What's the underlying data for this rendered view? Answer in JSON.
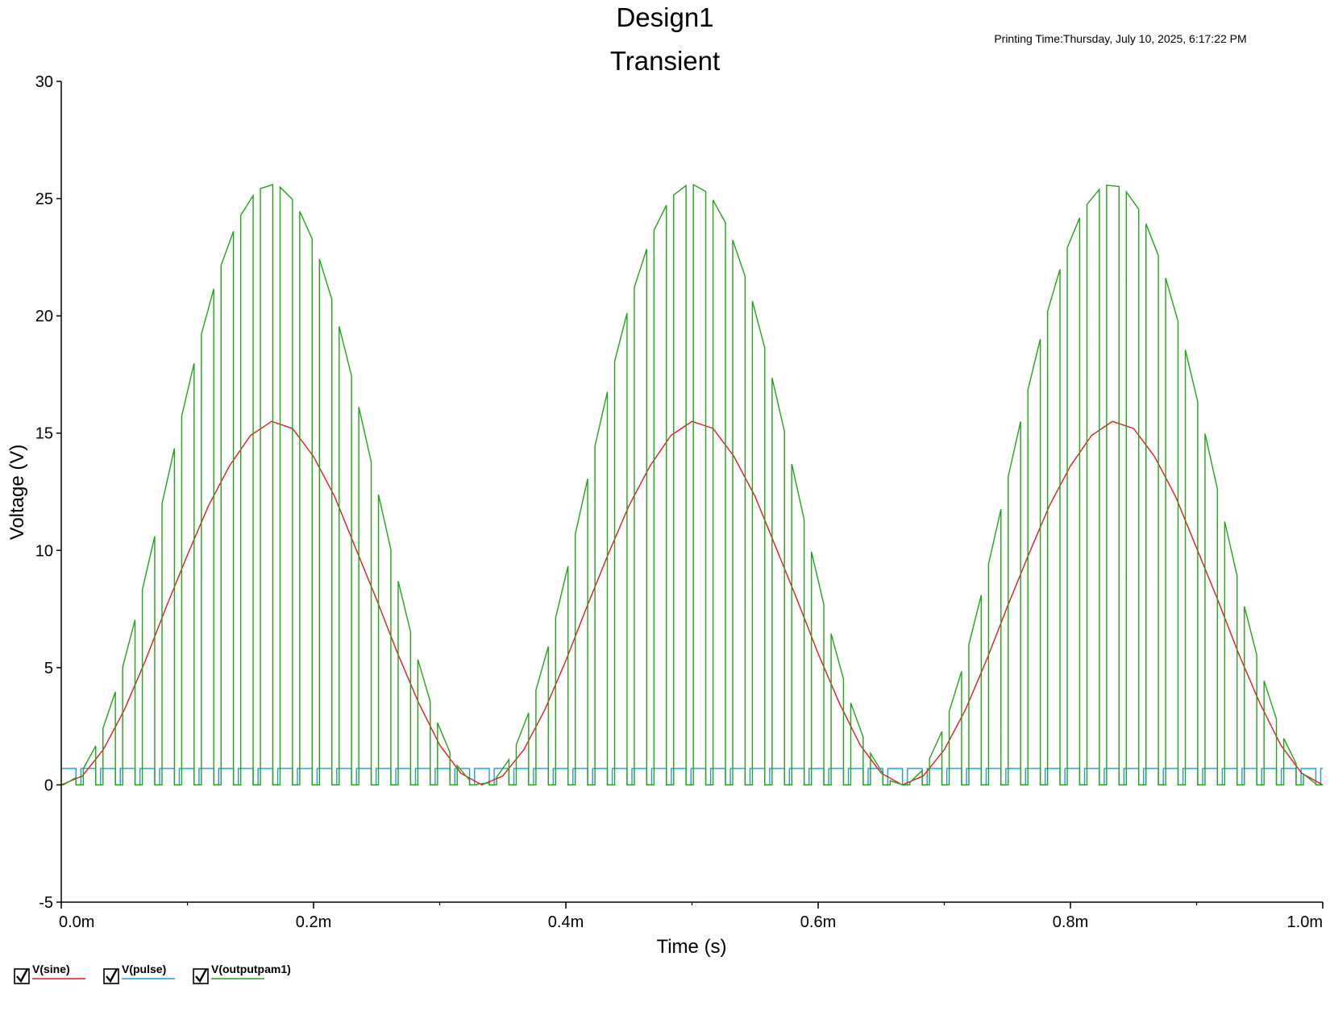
{
  "chart_data": {
    "type": "line",
    "title": "Design1",
    "subtitle": "Transient",
    "printing_time": "Printing Time:Thursday, July 10, 2025, 6:17:22 PM",
    "xlabel": "Time (s)",
    "ylabel": "Voltage (V)",
    "xlim": [
      0,
      0.001
    ],
    "ylim": [
      -5,
      30
    ],
    "x_ticks": [
      {
        "value": 0,
        "label": "0.0m"
      },
      {
        "value": 0.0002,
        "label": "0.2m"
      },
      {
        "value": 0.0004,
        "label": "0.4m"
      },
      {
        "value": 0.0006,
        "label": "0.6m"
      },
      {
        "value": 0.0008,
        "label": "0.8m"
      },
      {
        "value": 0.001,
        "label": "1.0m"
      }
    ],
    "x_minor_step": 0.0001,
    "y_ticks": [
      {
        "value": -5,
        "label": "-5"
      },
      {
        "value": 0,
        "label": "0"
      },
      {
        "value": 5,
        "label": "5"
      },
      {
        "value": 10,
        "label": "10"
      },
      {
        "value": 15,
        "label": "15"
      },
      {
        "value": 20,
        "label": "20"
      },
      {
        "value": 25,
        "label": "25"
      },
      {
        "value": 30,
        "label": "30"
      }
    ],
    "grid": false,
    "legend_position": "bottom-left",
    "series": [
      {
        "name": "V(sine)",
        "color": "#e31a1c",
        "visible": true,
        "x": [
          0,
          1.67e-05,
          3.33e-05,
          5e-05,
          6.67e-05,
          8.33e-05,
          0.0001,
          0.0001167,
          0.0001333,
          0.00015,
          0.0001667,
          0.0001833,
          0.0002,
          0.0002167,
          0.0002333,
          0.00025,
          0.0002667,
          0.0002833,
          0.0003,
          0.0003167,
          0.0003333,
          0.00035,
          0.0003667,
          0.0003833,
          0.0004,
          0.0004167,
          0.0004333,
          0.00045,
          0.0004667,
          0.0004833,
          0.0005,
          0.0005167,
          0.0005333,
          0.00055,
          0.0005667,
          0.0005833,
          0.0006,
          0.0006167,
          0.0006333,
          0.00065,
          0.0006667,
          0.0006833,
          0.0007,
          0.0007167,
          0.0007333,
          0.00075,
          0.0007667,
          0.0007833,
          0.0008,
          0.0008167,
          0.0008333,
          0.00085,
          0.0008667,
          0.0008833,
          0.0009,
          0.0009167,
          0.0009333,
          0.00095,
          0.0009667,
          0.0009833,
          0.001
        ],
        "values": [
          0,
          0.38,
          1.5,
          3.2,
          5.3,
          7.6,
          9.8,
          11.9,
          13.6,
          14.9,
          15.5,
          15.2,
          14.0,
          12.3,
          10.1,
          7.9,
          5.6,
          3.5,
          1.7,
          0.5,
          0,
          0.38,
          1.5,
          3.2,
          5.3,
          7.6,
          9.8,
          11.9,
          13.6,
          14.9,
          15.5,
          15.2,
          14.0,
          12.3,
          10.1,
          7.9,
          5.6,
          3.5,
          1.7,
          0.5,
          0,
          0.38,
          1.5,
          3.2,
          5.3,
          7.6,
          9.8,
          11.9,
          13.6,
          14.9,
          15.5,
          15.2,
          14.0,
          12.3,
          10.1,
          7.9,
          5.6,
          3.5,
          1.7,
          0.5,
          0
        ]
      },
      {
        "name": "V(pulse)",
        "color": "#1f9bd7",
        "visible": true,
        "period": 1.56e-05,
        "duty": 0.75,
        "high": 0.7,
        "low": 0
      },
      {
        "name": "V(outputpam1)",
        "color": "#22a31a",
        "visible": true,
        "period": 1.56e-05,
        "duty": 0.75,
        "low": 0,
        "peak_envelope": 25.6,
        "envelope_period": 0.000333
      }
    ]
  }
}
